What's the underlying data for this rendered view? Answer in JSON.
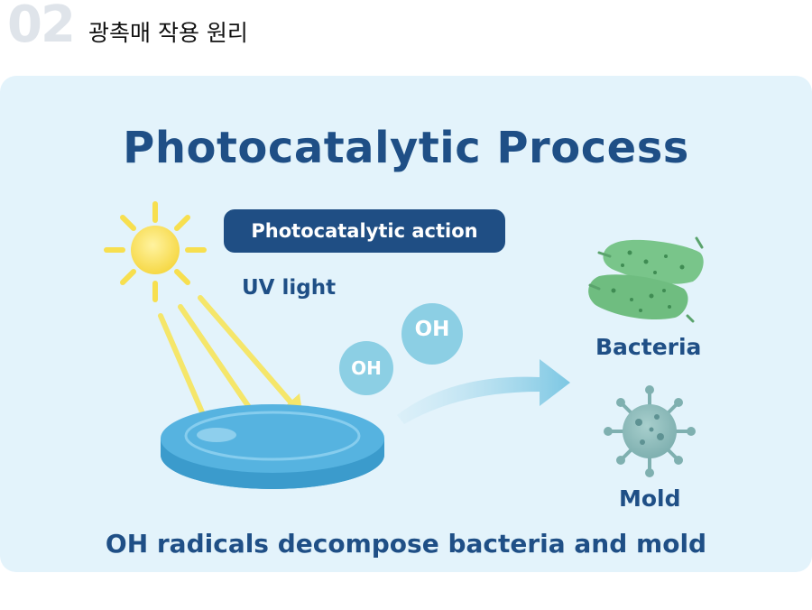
{
  "header": {
    "number": "02",
    "title": "광촉매 작용 원리"
  },
  "diagram": {
    "title": "Photocatalytic Process",
    "action_label": "Photocatalytic action",
    "uv_label": "UV light",
    "oh_large": "OH",
    "oh_small": "OH",
    "bacteria_label": "Bacteria",
    "mold_label": "Mold",
    "caption": "OH radicals decompose bacteria and mold"
  },
  "icons": [
    "sun-icon",
    "uv-ray-arrow-icon",
    "catalyst-disc-icon",
    "oh-radical-icon",
    "flow-arrow-icon",
    "bacteria-icon",
    "mold-virus-icon"
  ],
  "colors": {
    "panel_bg": "#e3f3fb",
    "title_blue": "#1f4f86",
    "pill_bg": "#1f4e84",
    "sun_yellow": "#f7df4f",
    "ray_yellow": "#f5e66a",
    "disc_blue": "#4fb0de",
    "oh_bubble": "#8ccfe4",
    "bacteria_green": "#79c58a",
    "mold_teal": "#8fbcbc"
  }
}
